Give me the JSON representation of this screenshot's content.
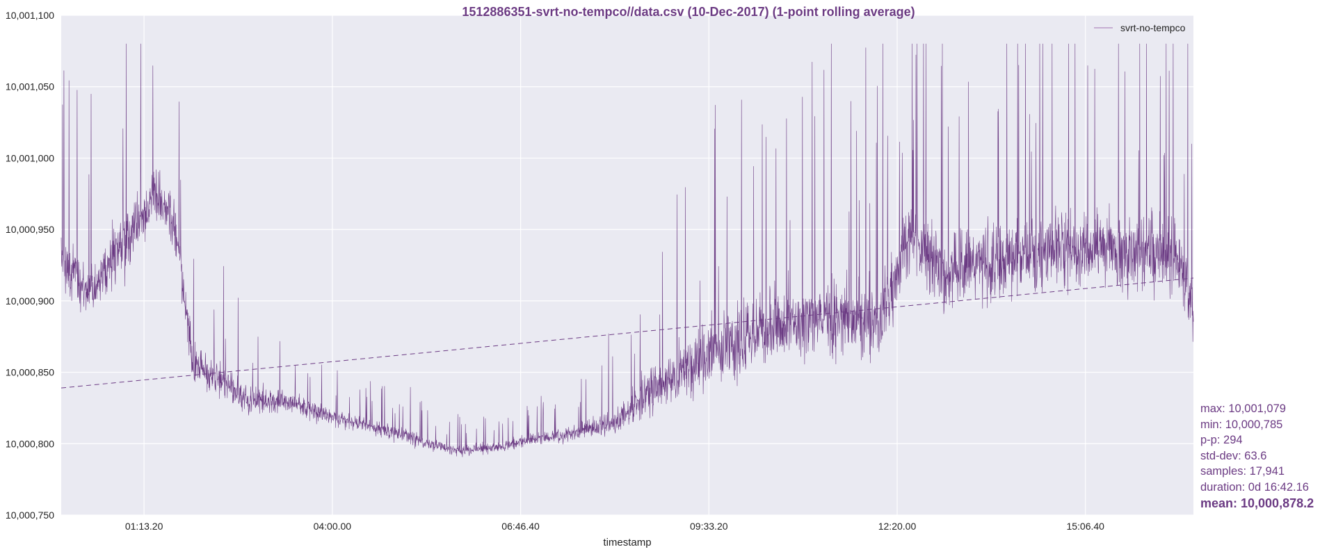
{
  "chart_data": {
    "type": "line",
    "title": "1512886351-svrt-no-tempco//data.csv (10-Dec-2017) (1-point rolling average)",
    "xlabel": "timestamp",
    "ylabel": "",
    "x_range_seconds": [
      0,
      60136
    ],
    "x_ticks": [
      {
        "label": "01:13.20",
        "t": 4400
      },
      {
        "label": "04:00.00",
        "t": 14400
      },
      {
        "label": "06:46.40",
        "t": 24400
      },
      {
        "label": "09:33.20",
        "t": 34400
      },
      {
        "label": "12:20.00",
        "t": 44400
      },
      {
        "label": "15:06.40",
        "t": 54400
      }
    ],
    "ylim": [
      10000750,
      10001100
    ],
    "y_ticks": [
      10000750,
      10000800,
      10000850,
      10000900,
      10000950,
      10001000,
      10001050,
      10001100
    ],
    "y_tick_labels": [
      "10,000,750",
      "10,000,800",
      "10,000,850",
      "10,000,900",
      "10,000,950",
      "10,001,000",
      "10,001,050",
      "10,001,100"
    ],
    "series": [
      {
        "name": "svrt-no-tempco",
        "color": "#6b3a83",
        "description_points": {
          "t": [
            0,
            1500,
            3000,
            4000,
            5000,
            6000,
            7000,
            8500,
            10000,
            12000,
            14000,
            15500,
            17000,
            18500,
            19500,
            21000,
            23000,
            25000,
            26500,
            28000,
            29500,
            31500,
            33500,
            35500,
            37500,
            39500,
            41500,
            43500,
            45000,
            47000,
            49000,
            51000,
            53000,
            55000,
            57000,
            59000,
            60136
          ],
          "center": [
            10000930,
            10000905,
            10000935,
            10000950,
            10000975,
            10000955,
            10000855,
            10000845,
            10000830,
            10000830,
            10000820,
            10000815,
            10000810,
            10000805,
            10000800,
            10000795,
            10000797,
            10000803,
            10000805,
            10000810,
            10000815,
            10000840,
            10000855,
            10000870,
            10000880,
            10000885,
            10000890,
            10000885,
            10000945,
            10000920,
            10000925,
            10000930,
            10000935,
            10000940,
            10000930,
            10000935,
            10000900
          ],
          "spread": [
            40,
            40,
            45,
            45,
            40,
            40,
            30,
            25,
            20,
            15,
            12,
            10,
            10,
            10,
            8,
            8,
            8,
            8,
            10,
            12,
            20,
            35,
            45,
            50,
            55,
            55,
            55,
            55,
            50,
            55,
            55,
            55,
            55,
            50,
            55,
            55,
            50
          ]
        }
      },
      {
        "name": "trend",
        "color": "#6b3a83",
        "style": "dashed",
        "x": [
          0,
          60136
        ],
        "y": [
          10000839,
          10000916
        ]
      }
    ],
    "legend": {
      "entries": [
        "svrt-no-tempco"
      ],
      "placement": "top-right"
    },
    "grid": true,
    "background": "#eaeaf2",
    "stats": {
      "max": "max: 10,001,079",
      "min": "min: 10,000,785",
      "pp": "p-p: 294",
      "std": "std-dev: 63.6",
      "samples": "samples: 17,941",
      "duration": "duration: 0d 16:42.16",
      "mean": "mean: 10,000,878.2"
    }
  }
}
